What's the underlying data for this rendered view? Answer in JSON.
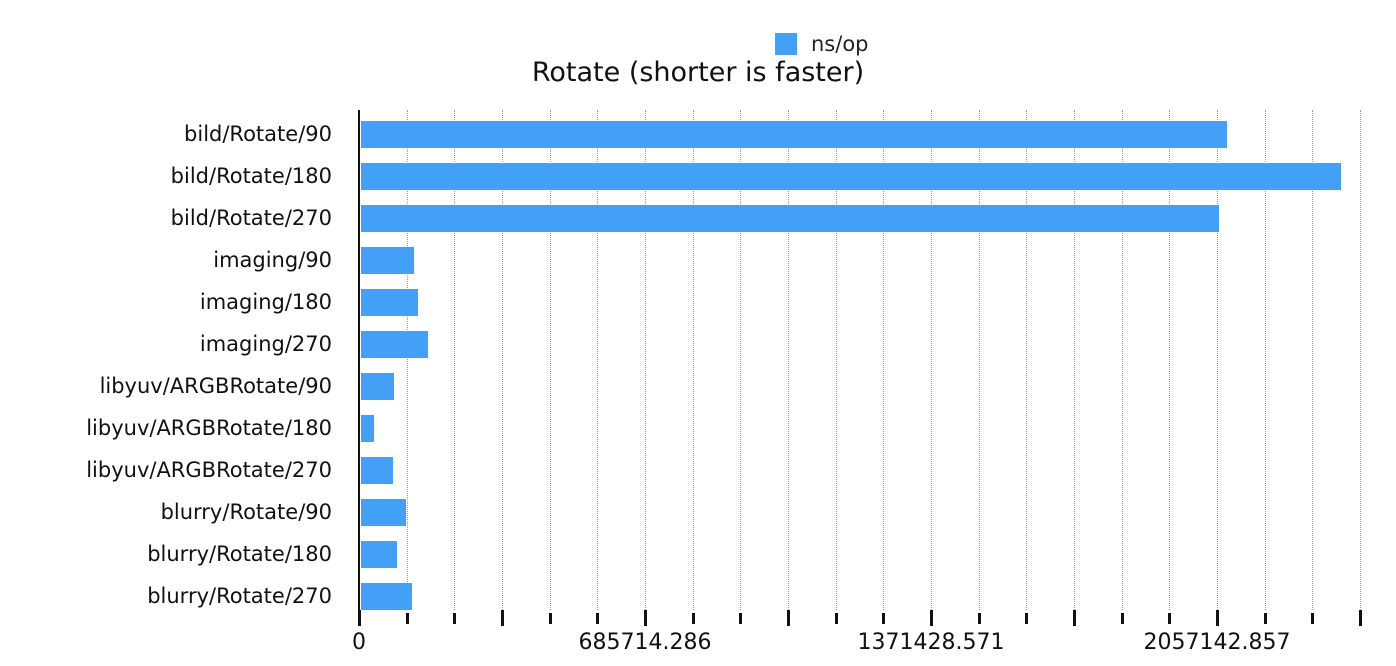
{
  "legend": {
    "label": "ns/op",
    "color": "#42A0F6"
  },
  "title": "Rotate (shorter is faster)",
  "axis": {
    "x_min": 0,
    "x_max": 2400000,
    "tick_step": 114285.714,
    "tick_labels": [
      "0",
      "685714.286",
      "1371428.571",
      "2057142.857"
    ]
  },
  "chart_data": {
    "type": "bar",
    "orientation": "horizontal",
    "title": "Rotate (shorter is faster)",
    "xlabel": "",
    "ylabel": "",
    "legend": [
      "ns/op"
    ],
    "legend_position": "top",
    "grid": true,
    "xlim": [
      0,
      2400000
    ],
    "x_tick_labels": [
      "0",
      "685714.286",
      "1371428.571",
      "2057142.857"
    ],
    "categories": [
      "bild/Rotate/90",
      "bild/Rotate/180",
      "bild/Rotate/270",
      "imaging/90",
      "imaging/180",
      "imaging/270",
      "libyuv/ARGBRotate/90",
      "libyuv/ARGBRotate/180",
      "libyuv/ARGBRotate/270",
      "blurry/Rotate/90",
      "blurry/Rotate/180",
      "blurry/Rotate/270"
    ],
    "series": [
      {
        "name": "ns/op",
        "color": "#42A0F6",
        "values": [
          2081000,
          2354000,
          2062000,
          132000,
          141000,
          165000,
          84000,
          36000,
          81500,
          113000,
          91000,
          127000
        ]
      }
    ]
  }
}
